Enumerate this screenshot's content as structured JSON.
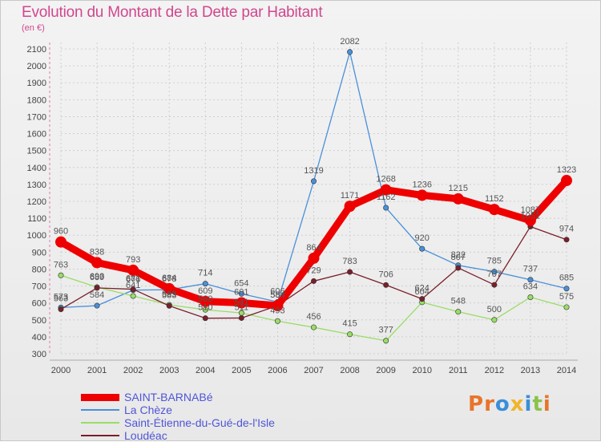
{
  "chart_data": {
    "type": "line",
    "title": "Evolution du Montant de la Dette par Habitant",
    "subtitle": "(en €)",
    "x": [
      "2000",
      "2001",
      "2002",
      "2003",
      "2004",
      "2005",
      "2006",
      "2007",
      "2008",
      "2009",
      "2010",
      "2011",
      "2012",
      "2013",
      "2014"
    ],
    "y_ticks": [
      "300",
      "400",
      "500",
      "600",
      "700",
      "800",
      "900",
      "1000",
      "1100",
      "1200",
      "1300",
      "1400",
      "1500",
      "1600",
      "1700",
      "1800",
      "1900",
      "2000",
      "2100"
    ],
    "ylim": [
      300,
      2100
    ],
    "grid": true,
    "legend_position": "bottom-left",
    "series": [
      {
        "name": "SAINT-BARNABé",
        "color": "#ee0000",
        "values": [
          960,
          838,
          793,
          684,
          609,
          601,
          584,
          864,
          1171,
          1268,
          1236,
          1215,
          1152,
          1087,
          1323
        ]
      },
      {
        "name": "La Chèze",
        "color": "#4a90d9",
        "values": [
          573,
          584,
          676,
          678,
          714,
          654,
          606,
          1319,
          2082,
          1162,
          920,
          822,
          785,
          737,
          685
        ]
      },
      {
        "name": "Saint-Étienne-du-Gué-de-l'Isle",
        "color": "#99dd66",
        "values": [
          763,
          693,
          641,
          589,
          560,
          541,
          493,
          456,
          415,
          377,
          604,
          548,
          500,
          634,
          575
        ]
      },
      {
        "name": "Loudéac",
        "color": "#7a1f2b",
        "values": [
          563,
          689,
          681,
          583,
          510,
          511,
          584,
          729,
          783,
          706,
          624,
          807,
          707,
          1051,
          974
        ]
      }
    ]
  },
  "branding": {
    "logo_text": "Proxiti"
  }
}
